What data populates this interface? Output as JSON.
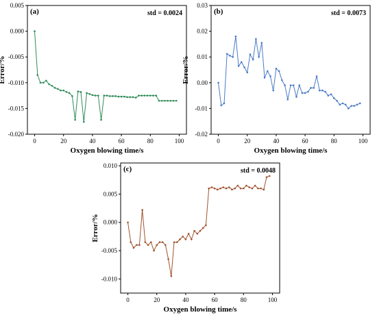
{
  "chart_data": [
    {
      "panel": "(a)",
      "type": "line",
      "annotation": "std = 0.0024",
      "xlabel": "Oxygen blowing time/s",
      "ylabel": "Error/%",
      "xlim": [
        -5,
        105
      ],
      "ylim": [
        -0.02,
        0.005
      ],
      "xticks": [
        0,
        20,
        40,
        60,
        80,
        100
      ],
      "yticks": [
        -0.02,
        -0.015,
        -0.01,
        -0.005,
        0.0,
        0.005
      ],
      "ytick_labels": [
        "-0.020",
        "-0.015",
        "-0.010",
        "-0.005",
        "0.000",
        "0.005"
      ],
      "color": "#2e8b57",
      "series": [
        {
          "x": [
            0,
            2,
            4,
            6,
            8,
            10,
            12,
            14,
            16,
            18,
            20,
            22,
            24,
            26,
            28,
            30,
            32,
            34,
            36,
            38,
            40,
            42,
            44,
            46,
            48,
            50,
            52,
            54,
            56,
            58,
            60,
            62,
            64,
            66,
            68,
            70,
            72,
            74,
            76,
            78,
            80,
            82,
            84,
            86,
            88,
            90,
            92,
            94,
            96,
            98
          ],
          "y": [
            0.0,
            -0.0085,
            -0.01,
            -0.01,
            -0.0096,
            -0.0103,
            -0.0106,
            -0.011,
            -0.0112,
            -0.0115,
            -0.0115,
            -0.0118,
            -0.012,
            -0.0126,
            -0.0172,
            -0.0117,
            -0.0118,
            -0.0176,
            -0.012,
            -0.0122,
            -0.0124,
            -0.0125,
            -0.0125,
            -0.0172,
            -0.0125,
            -0.0125,
            -0.0126,
            -0.0126,
            -0.0126,
            -0.0127,
            -0.0127,
            -0.0127,
            -0.0128,
            -0.0128,
            -0.0128,
            -0.0129,
            -0.0125,
            -0.0125,
            -0.0125,
            -0.0125,
            -0.0125,
            -0.0125,
            -0.0125,
            -0.0135,
            -0.0135,
            -0.0135,
            -0.0135,
            -0.0135,
            -0.0135,
            -0.0135
          ]
        }
      ]
    },
    {
      "panel": "(b)",
      "type": "line",
      "annotation": "std = 0.0073",
      "xlabel": "Oxygen blowing time/s",
      "ylabel": "Error/%",
      "xlim": [
        -5,
        105
      ],
      "ylim": [
        -0.02,
        0.03
      ],
      "xticks": [
        0,
        20,
        40,
        60,
        80,
        100
      ],
      "yticks": [
        -0.02,
        -0.01,
        0.0,
        0.01,
        0.02,
        0.03
      ],
      "ytick_labels": [
        "-0.02",
        "-0.01",
        "0.00",
        "0.01",
        "0.02",
        "0.03"
      ],
      "color": "#4a7ac8",
      "series": [
        {
          "x": [
            0,
            2,
            4,
            6,
            8,
            10,
            12,
            14,
            16,
            18,
            20,
            22,
            24,
            26,
            28,
            30,
            32,
            34,
            36,
            38,
            40,
            42,
            44,
            46,
            48,
            50,
            52,
            54,
            56,
            58,
            60,
            62,
            64,
            66,
            68,
            70,
            72,
            74,
            76,
            78,
            80,
            82,
            84,
            86,
            88,
            90,
            92,
            94,
            96,
            98
          ],
          "y": [
            0.0,
            -0.0088,
            -0.008,
            0.0112,
            0.0105,
            0.01,
            0.018,
            0.0065,
            0.008,
            0.006,
            0.004,
            0.011,
            0.009,
            0.017,
            0.01,
            0.0155,
            0.002,
            0.0045,
            0.0025,
            -0.003,
            0.0055,
            0.0045,
            0.001,
            -0.001,
            -0.0065,
            -0.001,
            -0.001,
            -0.0055,
            -0.001,
            -0.004,
            -0.004,
            -0.0035,
            -0.002,
            -0.002,
            0.0025,
            -0.003,
            -0.003,
            -0.0035,
            -0.005,
            -0.0045,
            -0.006,
            -0.007,
            -0.0085,
            -0.008,
            -0.0085,
            -0.01,
            -0.009,
            -0.009,
            -0.0085,
            -0.008
          ]
        }
      ]
    },
    {
      "panel": "(c)",
      "type": "line",
      "annotation": "std = 0.0048",
      "xlabel": "Oxygen blowing time/s",
      "ylabel": "Error/%",
      "xlim": [
        -5,
        105
      ],
      "ylim": [
        -0.0125,
        0.0105
      ],
      "xticks": [
        0,
        20,
        40,
        60,
        80,
        100
      ],
      "yticks": [
        -0.01,
        -0.005,
        0.0,
        0.005,
        0.01
      ],
      "ytick_labels": [
        "-0.010",
        "-0.005",
        "0.000",
        "0.005",
        "0.010"
      ],
      "color": "#a0522d",
      "series": [
        {
          "x": [
            0,
            2,
            4,
            6,
            8,
            10,
            12,
            14,
            16,
            18,
            20,
            22,
            24,
            26,
            28,
            30,
            32,
            34,
            36,
            38,
            40,
            42,
            44,
            46,
            48,
            50,
            52,
            54,
            56,
            58,
            60,
            62,
            64,
            66,
            68,
            70,
            72,
            74,
            76,
            78,
            80,
            82,
            84,
            86,
            88,
            90,
            92,
            94,
            96,
            98
          ],
          "y": [
            0.0,
            -0.0035,
            -0.0045,
            -0.004,
            -0.004,
            0.0022,
            -0.0035,
            -0.004,
            -0.0035,
            -0.005,
            -0.004,
            -0.0035,
            -0.0035,
            -0.004,
            -0.0065,
            -0.0095,
            -0.0035,
            -0.0035,
            -0.003,
            -0.0025,
            -0.003,
            -0.002,
            -0.003,
            -0.0015,
            -0.002,
            -0.0015,
            -0.001,
            -0.0005,
            0.006,
            0.0062,
            0.006,
            0.0058,
            0.006,
            0.0062,
            0.006,
            0.0062,
            0.0058,
            0.006,
            0.0065,
            0.006,
            0.006,
            0.0065,
            0.0062,
            0.006,
            0.0065,
            0.006,
            0.006,
            0.0058,
            0.008,
            0.0082
          ]
        }
      ]
    }
  ]
}
